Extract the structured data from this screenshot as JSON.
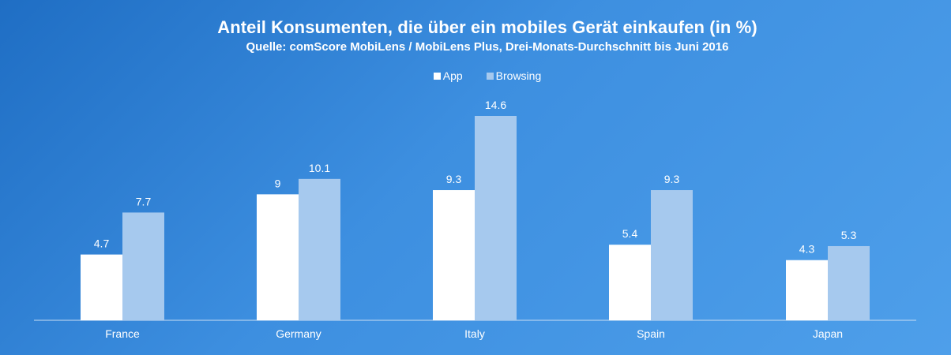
{
  "chart_data": {
    "type": "bar",
    "title": "Anteil Konsumenten, die über ein mobiles Gerät einkaufen (in %)",
    "subtitle": "Quelle: comScore MobiLens / MobiLens Plus, Drei-Monats-Durchschnitt bis Juni 2016",
    "categories": [
      "France",
      "Germany",
      "Italy",
      "Spain",
      "Japan"
    ],
    "series": [
      {
        "name": "App",
        "values": [
          4.7,
          9,
          9.3,
          5.4,
          4.3
        ],
        "color": "#ffffff"
      },
      {
        "name": "Browsing",
        "values": [
          7.7,
          10.1,
          14.6,
          9.3,
          5.3
        ],
        "color": "#a6c9ee"
      }
    ],
    "ylim": [
      0,
      14.6
    ],
    "grid": false,
    "legend_position": "top-center"
  }
}
